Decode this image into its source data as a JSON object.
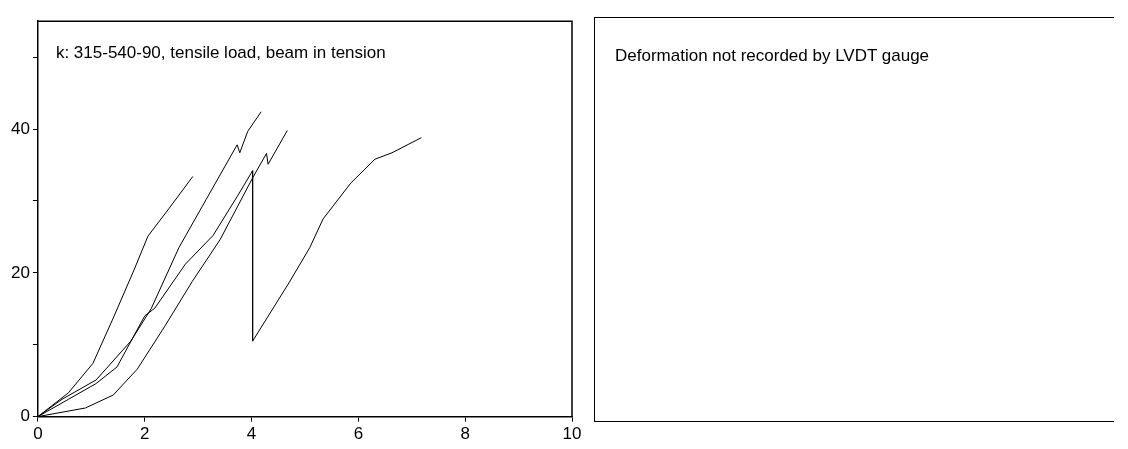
{
  "chart_data": [
    {
      "type": "line",
      "annotations": [
        "k: 315-540-90, tensile load, beam in tension"
      ],
      "xlim": [
        0,
        10
      ],
      "xticks": [
        0,
        2,
        4,
        6,
        8,
        10
      ],
      "ylim": [
        0,
        55
      ],
      "yticks": [
        0,
        {
          "value": 10,
          "label": null
        },
        20,
        {
          "value": 30,
          "label": null
        },
        40,
        {
          "value": 50,
          "label": null
        }
      ],
      "grid": false,
      "legend": false,
      "marker": "none",
      "line_style": "solid",
      "series": [
        {
          "color": "#000000",
          "x": [
            0,
            0.57,
            1.03,
            1.41,
            1.8,
            2.06,
            2.45,
            2.9
          ],
          "values": [
            0,
            3.3,
            7.4,
            13.7,
            20.4,
            25.1,
            28.9,
            33.4
          ]
        },
        {
          "color": "#000000",
          "x": [
            0,
            0.45,
            1.09,
            1.74,
            2.12,
            2.64,
            3.15,
            3.73,
            3.78,
            3.93,
            4.18
          ],
          "values": [
            0,
            2.4,
            5.1,
            10.5,
            15,
            23.5,
            30.2,
            37.8,
            36.7,
            39.7,
            42.4
          ]
        },
        {
          "color": "#000000",
          "x": [
            0,
            0.57,
            1.09,
            1.48,
            2,
            2.19,
            2.76,
            3.28,
            3.73,
            4.02,
            4.02,
            4.7,
            5.09,
            5.34,
            5.86,
            6.31,
            6.63,
            7.18
          ],
          "values": [
            0,
            2.4,
            4.6,
            6.9,
            14,
            15.1,
            21.2,
            25.2,
            30.6,
            34.2,
            10.5,
            18.6,
            23.5,
            27.5,
            32.5,
            35.8,
            36.7,
            38.8
          ]
        },
        {
          "color": "#000000",
          "x": [
            0,
            0.89,
            1.41,
            1.86,
            2.37,
            2.89,
            3.41,
            4.02,
            4.28,
            4.31,
            4.67
          ],
          "values": [
            0,
            1.2,
            3,
            6.6,
            12.5,
            18.8,
            24.6,
            33.2,
            36.6,
            35.1,
            39.8
          ]
        }
      ]
    },
    {
      "type": "other",
      "annotations": [
        "Deformation not recorded by LVDT gauge"
      ]
    }
  ]
}
